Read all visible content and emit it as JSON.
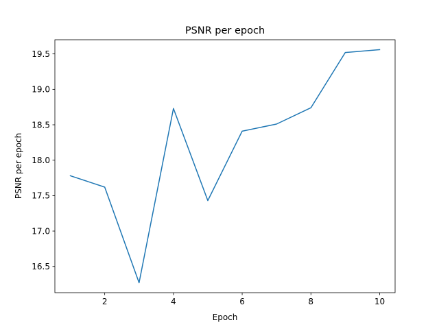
{
  "chart_data": {
    "type": "line",
    "title": "PSNR per epoch",
    "xlabel": "Epoch",
    "ylabel": "PSNR per epoch",
    "xlim": [
      0.55,
      10.45
    ],
    "ylim": [
      16.13,
      19.7
    ],
    "xticks": [
      2,
      4,
      6,
      8,
      10
    ],
    "xtick_labels": [
      "2",
      "4",
      "6",
      "8",
      "10"
    ],
    "yticks": [
      16.5,
      17.0,
      17.5,
      18.0,
      18.5,
      19.0,
      19.5
    ],
    "ytick_labels": [
      "16.5",
      "17.0",
      "17.5",
      "18.0",
      "18.5",
      "19.0",
      "19.5"
    ],
    "grid": false,
    "legend": false,
    "x": [
      1,
      2,
      3,
      4,
      5,
      6,
      7,
      8,
      9,
      10
    ],
    "series": [
      {
        "color": "#1f77b4",
        "values": [
          17.78,
          17.62,
          16.27,
          18.73,
          17.43,
          18.41,
          18.51,
          18.74,
          19.52,
          19.56
        ]
      }
    ]
  }
}
